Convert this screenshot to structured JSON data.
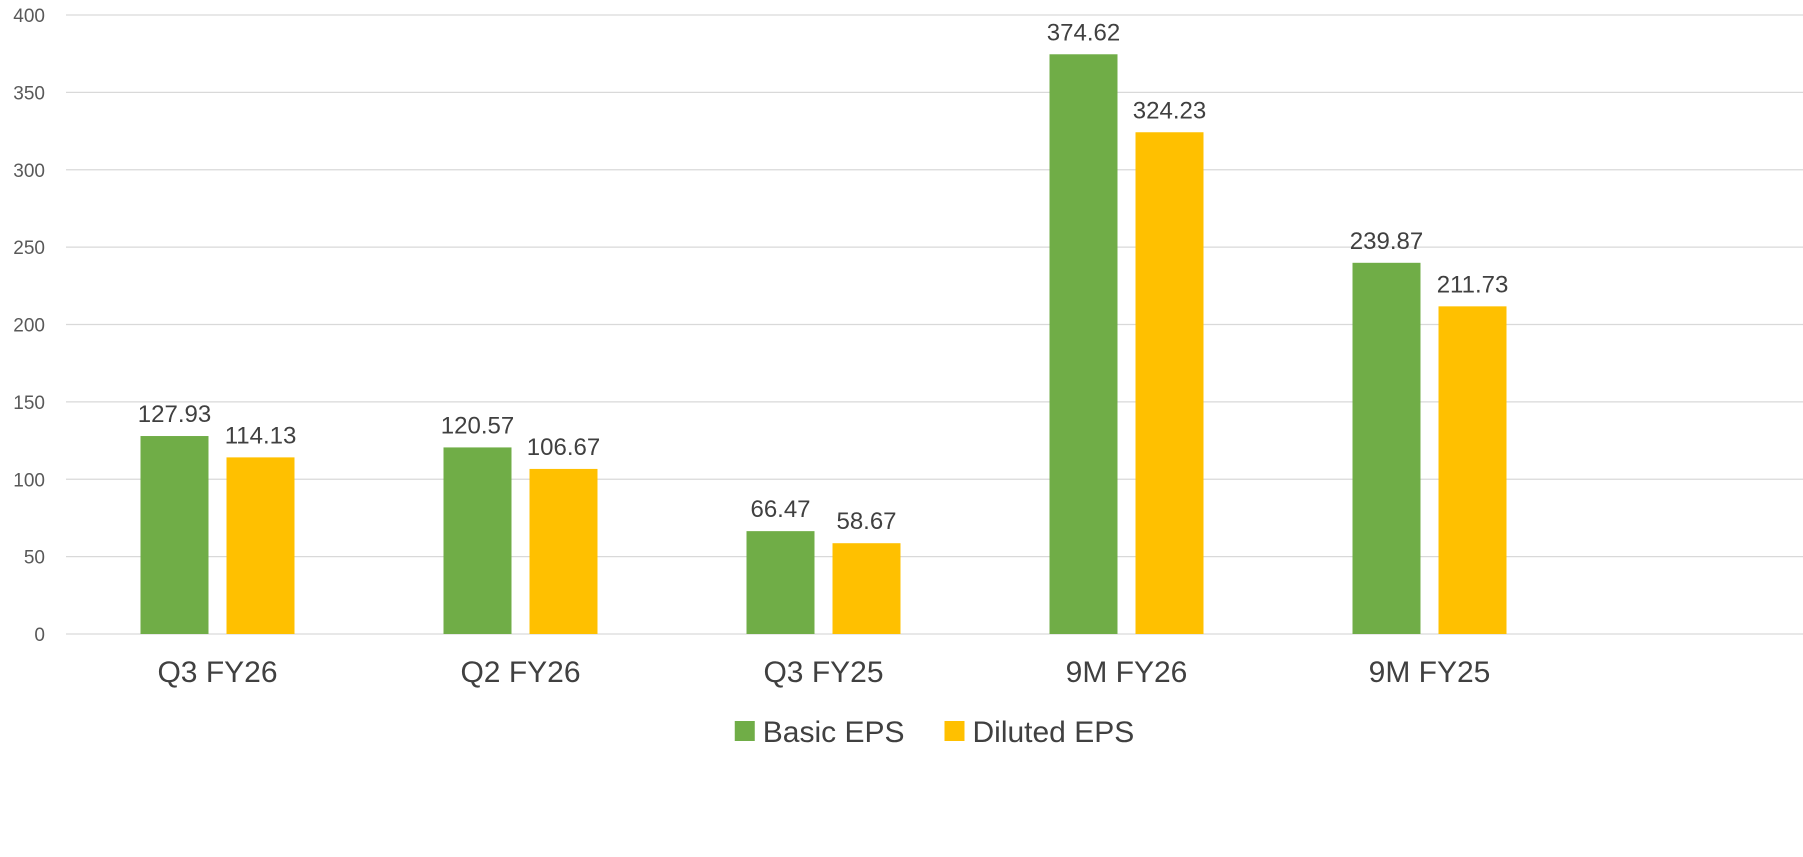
{
  "chart_data": {
    "type": "bar",
    "categories": [
      "Q3 FY26",
      "Q2 FY26",
      "Q3 FY25",
      "9M FY26",
      "9M FY25"
    ],
    "series": [
      {
        "name": "Basic EPS",
        "color": "#70AD47",
        "values": [
          127.93,
          120.57,
          66.47,
          374.62,
          239.87
        ],
        "labels": [
          "127.93",
          "120.57",
          "66.47",
          "374.62",
          "239.87"
        ]
      },
      {
        "name": "Diluted EPS",
        "color": "#FFC000",
        "values": [
          114.13,
          106.67,
          58.67,
          324.23,
          211.73
        ],
        "labels": [
          "114.13",
          "106.67",
          "58.67",
          "324.23",
          "211.73"
        ]
      }
    ],
    "ylim": [
      0,
      400
    ],
    "yticks": [
      "0",
      "50",
      "100",
      "150",
      "200",
      "250",
      "300",
      "350",
      "400"
    ],
    "grid": true,
    "legend_position": "bottom-center"
  }
}
